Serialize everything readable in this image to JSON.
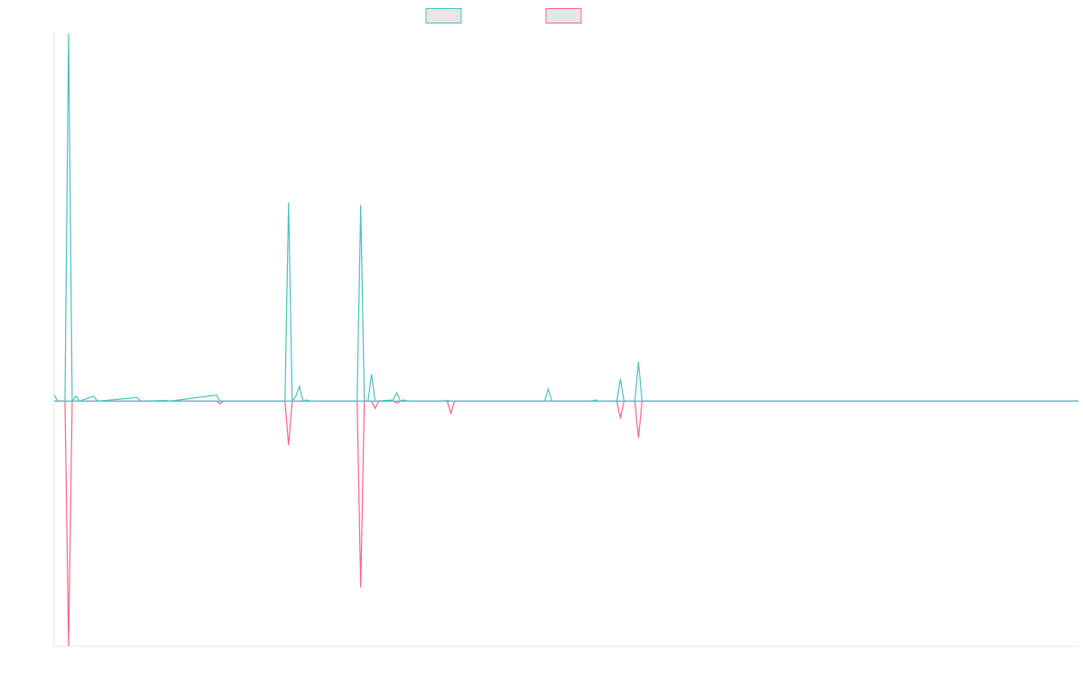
{
  "chart_data": {
    "type": "line",
    "title": "",
    "xlabel": "",
    "ylabel": "",
    "grid": false,
    "legend": "top-center",
    "x_tick_labels": [],
    "y_tick_labels": [],
    "x": [
      0,
      1,
      2,
      3,
      4,
      5,
      6,
      7,
      8,
      9,
      10,
      11,
      12,
      13,
      14,
      15,
      16,
      17,
      18,
      19,
      20,
      21,
      22,
      23,
      24,
      25,
      26,
      27,
      28,
      29,
      30,
      31,
      32,
      33,
      34,
      35,
      36,
      37,
      38,
      39,
      40,
      41,
      42,
      43,
      44,
      45,
      46,
      47,
      48,
      49,
      50,
      51,
      52,
      53,
      54,
      55,
      56,
      57,
      58,
      59,
      60,
      61,
      62,
      63,
      64,
      65,
      66,
      67,
      68,
      69,
      70,
      71,
      72,
      73,
      74,
      75,
      76,
      77,
      78,
      79,
      80,
      81,
      82,
      83,
      84,
      85,
      86,
      87,
      88,
      89,
      90,
      91,
      92,
      93,
      94,
      95,
      96,
      97,
      98,
      99,
      100,
      101,
      102,
      103,
      104,
      105,
      106,
      107,
      108,
      109,
      110,
      111,
      112,
      113,
      114,
      115,
      116,
      117,
      118,
      119,
      120,
      121,
      122,
      123,
      124,
      125,
      126,
      127,
      128,
      129,
      130,
      131,
      132,
      133,
      134,
      135,
      136,
      137,
      138,
      139,
      140,
      141,
      142,
      143,
      144,
      145,
      146,
      147,
      148,
      149,
      150,
      151,
      152,
      153,
      154,
      155,
      156,
      157,
      158,
      159,
      160,
      161,
      162,
      163,
      164,
      165,
      166,
      167,
      168,
      169,
      170,
      171,
      172,
      173,
      174,
      175,
      176,
      177,
      178,
      179,
      180,
      181,
      182,
      183,
      184,
      185,
      186,
      187,
      188,
      189,
      190,
      191,
      192,
      193,
      194,
      195,
      196,
      197,
      198,
      199,
      200,
      201,
      202,
      203,
      204,
      205,
      206,
      207,
      208,
      209,
      210,
      211,
      212,
      213,
      214,
      215,
      216,
      217,
      218,
      219,
      220,
      221,
      222,
      223,
      224,
      225,
      226,
      227,
      228,
      229,
      230,
      231,
      232,
      233,
      234,
      235,
      236,
      237,
      238,
      239,
      240,
      241,
      242,
      243,
      244,
      245,
      246,
      247,
      248,
      249,
      250,
      251,
      252,
      253,
      254,
      255,
      256,
      257,
      258,
      259,
      260,
      261,
      262,
      263,
      264,
      265,
      266,
      267,
      268,
      269,
      270,
      271,
      272,
      273,
      274,
      275,
      276,
      277,
      278,
      279,
      280,
      281,
      282,
      283,
      284
    ],
    "ylim": [
      -100,
      150
    ],
    "series": [
      {
        "name": "",
        "color": "#4bc0c0",
        "points": [
          [
            0,
            2.5
          ],
          [
            1,
            0
          ],
          [
            3,
            0
          ],
          [
            4,
            150
          ],
          [
            5,
            0
          ],
          [
            6,
            2
          ],
          [
            7,
            0
          ],
          [
            11,
            2
          ],
          [
            12,
            0
          ],
          [
            23,
            1.5
          ],
          [
            24,
            0
          ],
          [
            31,
            0.3
          ],
          [
            32,
            0
          ],
          [
            45,
            2.5
          ],
          [
            46,
            0
          ],
          [
            64,
            0
          ],
          [
            65,
            81
          ],
          [
            66,
            0
          ],
          [
            67,
            2
          ],
          [
            68,
            6
          ],
          [
            69,
            0
          ],
          [
            70,
            0.5
          ],
          [
            71,
            0
          ],
          [
            84,
            0
          ],
          [
            85,
            80
          ],
          [
            86,
            0
          ],
          [
            87,
            0
          ],
          [
            88,
            11
          ],
          [
            89,
            0
          ],
          [
            94,
            0.5
          ],
          [
            95,
            3.5
          ],
          [
            96,
            0
          ],
          [
            97,
            0.5
          ],
          [
            98,
            0
          ],
          [
            108,
            0
          ],
          [
            109,
            0.3
          ],
          [
            110,
            0
          ],
          [
            136,
            0
          ],
          [
            137,
            5
          ],
          [
            138,
            0
          ],
          [
            149,
            0
          ],
          [
            150,
            0.5
          ],
          [
            151,
            0
          ],
          [
            156,
            0
          ],
          [
            157,
            9
          ],
          [
            158,
            0
          ],
          [
            161,
            0
          ],
          [
            162,
            16
          ],
          [
            163,
            0
          ],
          [
            284,
            0
          ]
        ]
      },
      {
        "name": "",
        "color": "#ff6384",
        "points": [
          [
            0,
            0
          ],
          [
            3,
            0
          ],
          [
            4,
            -100
          ],
          [
            5,
            0
          ],
          [
            45,
            0
          ],
          [
            46,
            -1
          ],
          [
            47,
            0
          ],
          [
            64,
            0
          ],
          [
            65,
            -18
          ],
          [
            66,
            0
          ],
          [
            84,
            0
          ],
          [
            85,
            -76
          ],
          [
            86,
            0
          ],
          [
            88,
            0
          ],
          [
            89,
            -3
          ],
          [
            90,
            0
          ],
          [
            94,
            0
          ],
          [
            95,
            -0.8
          ],
          [
            96,
            0
          ],
          [
            109,
            0
          ],
          [
            110,
            -5
          ],
          [
            111,
            0
          ],
          [
            156,
            0
          ],
          [
            157,
            -7
          ],
          [
            158,
            0
          ],
          [
            161,
            0
          ],
          [
            162,
            -15
          ],
          [
            163,
            0
          ],
          [
            284,
            0
          ]
        ]
      }
    ]
  }
}
